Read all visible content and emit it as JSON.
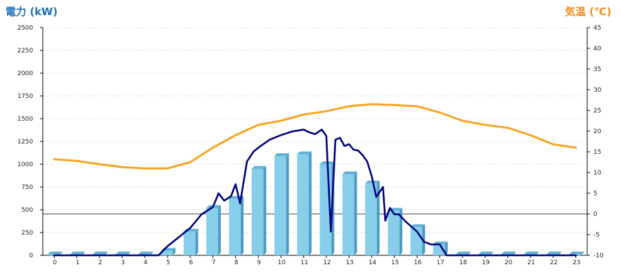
{
  "left_axis_title": "電力 (kW)",
  "right_axis_title": "気温 (℃)",
  "chart_data": {
    "type": "bar",
    "categories": [
      "0",
      "1",
      "2",
      "3",
      "4",
      "5",
      "6",
      "7",
      "8",
      "9",
      "10",
      "11",
      "12",
      "13",
      "14",
      "15",
      "16",
      "17",
      "18",
      "19",
      "20",
      "21",
      "22",
      "23"
    ],
    "y_left": {
      "min": 0,
      "max": 2500,
      "ticks": [
        0,
        250,
        500,
        750,
        1000,
        1250,
        1500,
        1750,
        2000,
        2250,
        2500
      ]
    },
    "y_right": {
      "min": -10,
      "max": 45,
      "ticks": [
        -10,
        -5,
        0,
        5,
        10,
        15,
        20,
        25,
        30,
        35,
        40,
        45
      ]
    },
    "grid": true,
    "series": [
      {
        "type": "bar",
        "axis": "left",
        "color": "#87ceeb",
        "values": [
          10,
          10,
          10,
          10,
          10,
          50,
          260,
          520,
          620,
          950,
          1090,
          1110,
          1000,
          890,
          790,
          490,
          310,
          120,
          10,
          10,
          10,
          10,
          10,
          10
        ]
      },
      {
        "type": "line",
        "axis": "left",
        "color": "#000080",
        "x": [
          0,
          4.6,
          5.0,
          5.5,
          6.0,
          6.5,
          7.0,
          7.25,
          7.5,
          7.8,
          8.0,
          8.2,
          8.5,
          8.8,
          9.0,
          9.5,
          10.0,
          10.5,
          11.0,
          11.25,
          11.5,
          11.8,
          12.0,
          12.2,
          12.4,
          12.6,
          12.8,
          13.0,
          13.2,
          13.4,
          13.6,
          13.8,
          14.0,
          14.2,
          14.5,
          14.6,
          14.8,
          15.0,
          15.2,
          15.5,
          16.0,
          16.3,
          16.6,
          17.0,
          17.3,
          17.8,
          18.0,
          23.0
        ],
        "y": [
          0,
          0,
          100,
          200,
          300,
          450,
          530,
          680,
          600,
          650,
          780,
          570,
          1030,
          1140,
          1180,
          1270,
          1320,
          1360,
          1380,
          1350,
          1330,
          1380,
          1310,
          260,
          1270,
          1290,
          1200,
          1220,
          1160,
          1150,
          1100,
          1030,
          870,
          640,
          750,
          380,
          520,
          450,
          450,
          370,
          260,
          150,
          120,
          120,
          0,
          0,
          0,
          0
        ]
      },
      {
        "type": "line",
        "axis": "right",
        "color": "#f5a623",
        "x": [
          0,
          1,
          2,
          3,
          4,
          5,
          6,
          7,
          8,
          9,
          10,
          11,
          12,
          13,
          14,
          15,
          16,
          17,
          18,
          19,
          20,
          21,
          22,
          23
        ],
        "y": [
          13.2,
          12.8,
          12.0,
          11.3,
          11.0,
          11.0,
          12.5,
          16.0,
          19.0,
          21.5,
          22.5,
          24.0,
          24.8,
          26.0,
          26.5,
          26.3,
          26.0,
          24.5,
          22.5,
          21.5,
          20.8,
          19.0,
          16.8,
          16.0
        ]
      }
    ]
  }
}
